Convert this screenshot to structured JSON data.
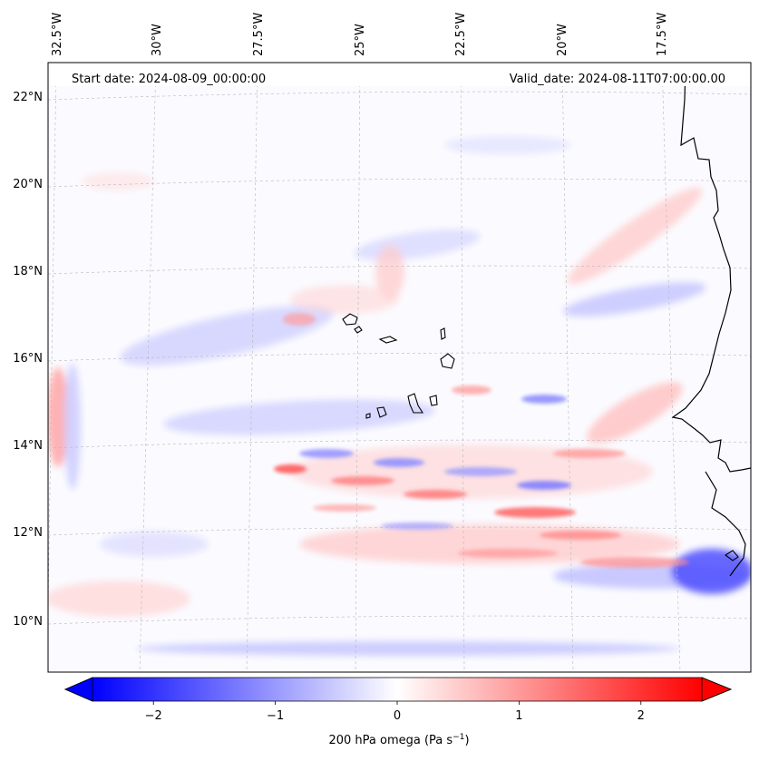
{
  "map": {
    "start_date": "Start date: 2024-08-09_00:00:00",
    "valid_date": "Valid_date: 2024-08-11T07:00:00.00",
    "lon_labels": [
      "32.5°W",
      "30°W",
      "27.5°W",
      "25°W",
      "22.5°W",
      "20°W",
      "17.5°W"
    ],
    "lat_labels": [
      "22°N",
      "20°N",
      "18°N",
      "16°N",
      "14°N",
      "12°N",
      "10°N"
    ],
    "field_name": "200 hPa omega",
    "colors": {
      "negative": "#0000ff",
      "neutral": "#ffffff",
      "positive": "#ff0000",
      "coastline": "#000000"
    }
  },
  "colorbar": {
    "ticks": [
      "−2",
      "−1",
      "0",
      "1",
      "2"
    ],
    "label_main": "200 hPa omega (Pa s",
    "label_exp": "−1",
    "label_end": ")",
    "min": -2.75,
    "max": 2.75
  }
}
